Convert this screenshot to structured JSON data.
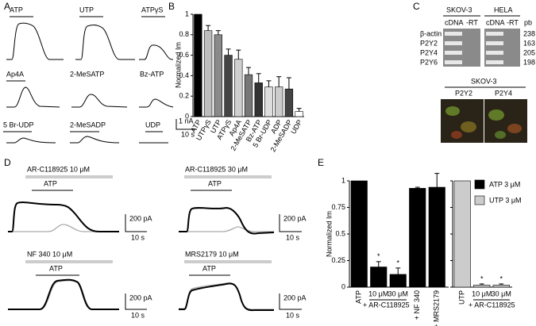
{
  "panel_labels": [
    "A",
    "B",
    "C",
    "D",
    "E"
  ],
  "panel_a": {
    "traces": [
      "ATP",
      "UTP",
      "ATPγS",
      "Ap4A",
      "2-MeSATP",
      "Bz-ATP",
      "5 Br-UDP",
      "2-MeSADP",
      "UDP"
    ],
    "scale_current": "1 nA",
    "scale_time": "10 s"
  },
  "panel_c": {
    "cell_lines": [
      "SKOV-3",
      "HELA"
    ],
    "lanes": [
      "cDNA",
      "-RT",
      "cDNA",
      "-RT"
    ],
    "size_header": "pb",
    "genes": [
      "β-actin",
      "P2Y2",
      "P2Y4",
      "P2Y6"
    ],
    "sizes": [
      "238",
      "163",
      "205",
      "198"
    ],
    "image_title": "SKOV-3",
    "image_labels": [
      "P2Y2",
      "P2Y4"
    ]
  },
  "panel_d": {
    "conditions": [
      {
        "drug": "AR-C118925 10 μM",
        "agonist": "ATP",
        "scale_current": "200 pA",
        "scale_time": "10 s"
      },
      {
        "drug": "AR-C118925 30 μM",
        "agonist": "ATP",
        "scale_current": "200 pA",
        "scale_time": "10 s"
      },
      {
        "drug": "NF 340 10 μM",
        "agonist": "ATP",
        "scale_current": "200 pA",
        "scale_time": "10 s"
      },
      {
        "drug": "MRS2179 10 μM",
        "agonist": "ATP",
        "scale_current": "200 pA",
        "scale_time": "10 s"
      }
    ]
  },
  "chart_data": [
    {
      "type": "bar",
      "ylabel": "Normalized Im",
      "categories": [
        "ATP",
        "UTPγS",
        "UTP",
        "ATPγS",
        "Ap4A",
        "2-MeSATP",
        "Bz-ATP",
        "5 Br-UDP",
        "ADP",
        "2-MeSADP",
        "UDP"
      ],
      "values": [
        1,
        0.84,
        0.8,
        0.6,
        0.56,
        0.41,
        0.33,
        0.29,
        0.29,
        0.27,
        0.05
      ],
      "errors": [
        0,
        0.05,
        0.04,
        0.06,
        0.09,
        0.07,
        0.09,
        0.06,
        0.1,
        0.11,
        0.03
      ],
      "colors": [
        "#000000",
        "#bdbdbd",
        "#8a8a8a",
        "#444444",
        "#cfcfcf",
        "#777777",
        "#333333",
        "#dedede",
        "#cccccc",
        "#444444",
        "#ffffff"
      ],
      "ylim": [
        0,
        1
      ],
      "yticks": [
        0,
        0.2,
        0.4,
        0.6,
        0.8,
        1
      ]
    },
    {
      "type": "bar",
      "ylabel": "Normalized Im",
      "categories": [
        "ATP",
        "10 μM",
        "30 μM",
        "+ NF 340",
        "+ MRS2179",
        "UTP",
        "10 μM",
        "30 μM"
      ],
      "series": [
        {
          "name": "ATP 3 μM",
          "color": "#000000",
          "values": [
            1,
            0.19,
            0.12,
            0.93,
            0.94,
            null,
            null,
            null
          ],
          "errors": [
            0,
            0.05,
            0.06,
            0.01,
            0.13,
            null,
            null,
            null
          ]
        },
        {
          "name": "UTP 3 μM",
          "color": "#cccccc",
          "values": [
            null,
            null,
            null,
            null,
            null,
            1,
            0.02,
            0.02
          ],
          "errors": [
            null,
            null,
            null,
            null,
            null,
            0,
            0.01,
            0.01
          ]
        }
      ],
      "significance": [
        null,
        "*",
        "*",
        null,
        null,
        null,
        "*",
        "*"
      ],
      "group_labels": [
        "+ AR-C118925",
        "+ AR-C118925"
      ],
      "legend": "top-right",
      "ylim": [
        0,
        1
      ],
      "yticks": [
        0,
        0.25,
        0.5,
        0.75,
        1
      ]
    }
  ]
}
